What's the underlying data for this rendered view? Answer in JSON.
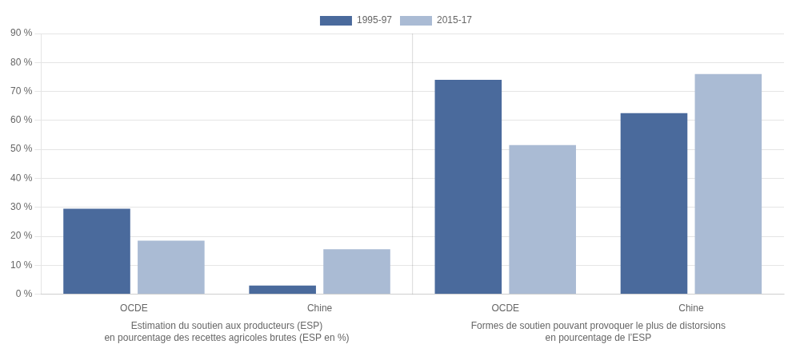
{
  "chart_data": {
    "type": "bar",
    "categories": [
      "OCDE",
      "Chine",
      "OCDE",
      "Chine"
    ],
    "series": [
      {
        "name": "1995-97",
        "color": "#4A6A9C",
        "values": [
          29.5,
          3.0,
          74.0,
          62.5
        ]
      },
      {
        "name": "2015-17",
        "color": "#AABBD4",
        "values": [
          18.5,
          15.5,
          51.5,
          76.0
        ]
      }
    ],
    "ylim": [
      0,
      90
    ],
    "yticks": [
      {
        "value": 0,
        "label": "0 %"
      },
      {
        "value": 10,
        "label": "10 %"
      },
      {
        "value": 20,
        "label": "20 %"
      },
      {
        "value": 30,
        "label": "30 %"
      },
      {
        "value": 40,
        "label": "40 %"
      },
      {
        "value": 50,
        "label": "50 %"
      },
      {
        "value": 60,
        "label": "60 %"
      },
      {
        "value": 70,
        "label": "70 %"
      },
      {
        "value": 80,
        "label": "80 %"
      },
      {
        "value": 90,
        "label": "90 %"
      }
    ],
    "grid": true,
    "legend": "top",
    "annotations": [
      "Estimation du soutien aux producteurs (ESP)\nen pourcentage des recettes agricoles brutes (ESP en %)",
      "Formes de soutien pouvant provoquer le plus de distorsions\nen pourcentage de l’ESP"
    ]
  }
}
